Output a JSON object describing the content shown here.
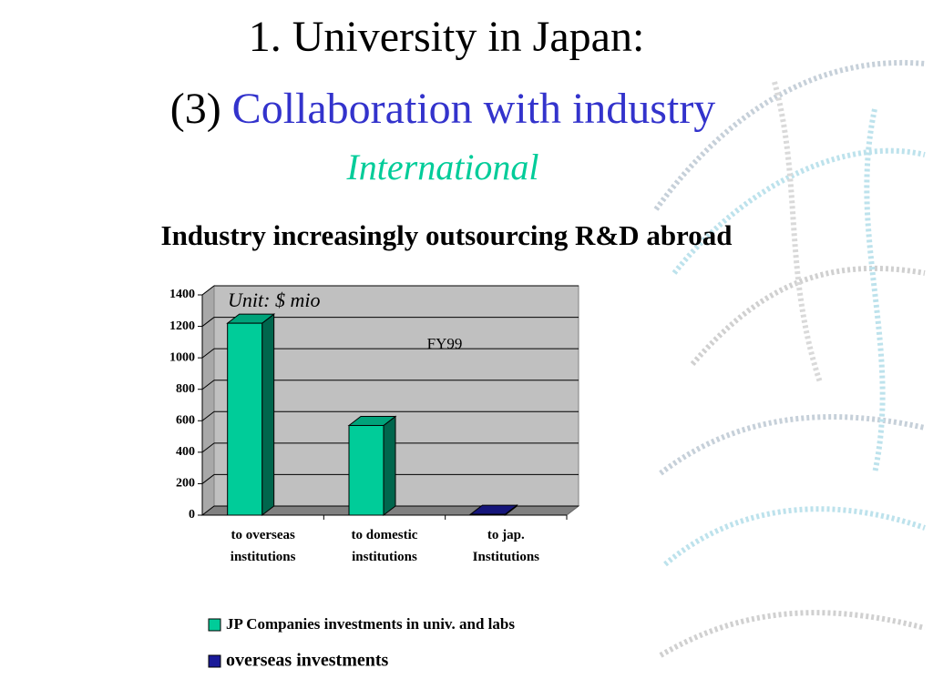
{
  "slide": {
    "title": "1. University in Japan:",
    "subtitle_prefix": "(3)",
    "subtitle": "Collaboration with industry",
    "subtitle_note": "International",
    "heading": "Industry increasingly outsourcing R&D abroad"
  },
  "chart_data": {
    "type": "bar",
    "annotations": [
      "Unit: $ mio",
      "FY99"
    ],
    "categories": [
      "to overseas institutions",
      "to domestic institutions",
      "to jap. Institutions"
    ],
    "series": [
      {
        "name": "JP Companies investments in univ. and labs",
        "color": "#00cc99",
        "values": [
          1220,
          570,
          null
        ]
      },
      {
        "name": "overseas investments",
        "color": "#1a1a99",
        "values": [
          null,
          null,
          5
        ]
      }
    ],
    "ylim": [
      0,
      1400
    ],
    "yticks": [
      0,
      200,
      400,
      600,
      800,
      1000,
      1200,
      1400
    ],
    "grid": true
  }
}
